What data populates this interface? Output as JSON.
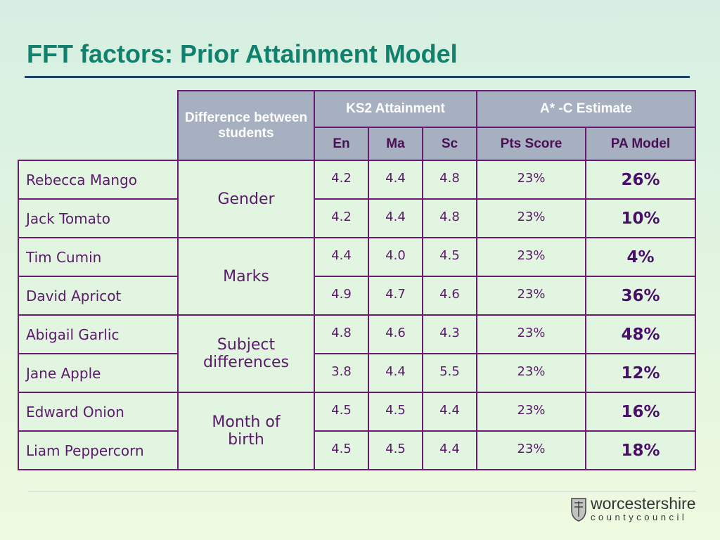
{
  "title": "FFT factors: Prior Attainment Model",
  "table": {
    "header": {
      "difference": "Difference between students",
      "ks2": "KS2 Attainment",
      "estimate": "A* -C Estimate",
      "subheaders": [
        "En",
        "Ma",
        "Sc",
        "Pts Score",
        "PA Model"
      ]
    },
    "groups": [
      {
        "label": "Gender",
        "rows": [
          {
            "name": "Rebecca Mango",
            "values": [
              "4.2",
              "4.4",
              "4.8",
              "23%",
              "26%"
            ]
          },
          {
            "name": "Jack Tomato",
            "values": [
              "4.2",
              "4.4",
              "4.8",
              "23%",
              "10%"
            ]
          }
        ]
      },
      {
        "label": "Marks",
        "rows": [
          {
            "name": "Tim Cumin",
            "values": [
              "4.4",
              "4.0",
              "4.5",
              "23%",
              "4%"
            ]
          },
          {
            "name": "David Apricot",
            "values": [
              "4.9",
              "4.7",
              "4.6",
              "23%",
              "36%"
            ]
          }
        ]
      },
      {
        "label": "Subject differences",
        "rows": [
          {
            "name": "Abigail Garlic",
            "values": [
              "4.8",
              "4.6",
              "4.3",
              "23%",
              "48%"
            ]
          },
          {
            "name": "Jane Apple",
            "values": [
              "3.8",
              "4.4",
              "5.5",
              "23%",
              "12%"
            ]
          }
        ]
      },
      {
        "label": "Month of birth",
        "rows": [
          {
            "name": "Edward Onion",
            "values": [
              "4.5",
              "4.5",
              "4.4",
              "23%",
              "16%"
            ]
          },
          {
            "name": "Liam Peppercorn",
            "values": [
              "4.5",
              "4.5",
              "4.4",
              "23%",
              "18%"
            ]
          }
        ]
      }
    ]
  },
  "logo": {
    "name": "worcestershire",
    "sub": "countycouncil"
  }
}
